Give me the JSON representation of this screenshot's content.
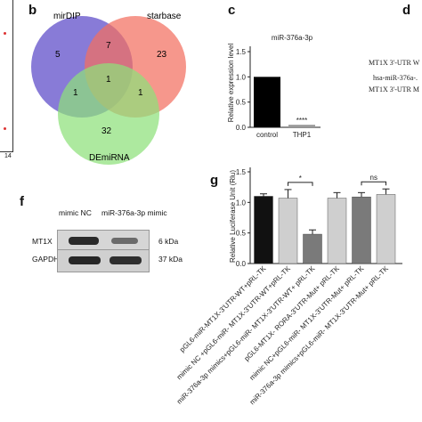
{
  "panels": {
    "b": "b",
    "c": "c",
    "d": "d",
    "f": "f",
    "g": "g"
  },
  "panel_a": {
    "tick": "14"
  },
  "venn": {
    "sets": [
      "mirDIP",
      "starbase",
      "DEmiRNA"
    ],
    "colors": [
      "#6a5acd",
      "#f26f5f",
      "#8ee07a"
    ],
    "counts": {
      "mirDIP_only": "5",
      "starbase_only": "23",
      "DEmiRNA_only": "32",
      "mirDIP_starbase": "7",
      "mirDIP_DEmiRNA": "1",
      "starbase_DEmiRNA": "1",
      "all_three": "1"
    }
  },
  "panel_d": {
    "lines": [
      "MT1X 3'-UTR W",
      "hsa-miR-376a-.",
      "MT1X 3'-UTR M"
    ]
  },
  "blot": {
    "col_labels": [
      "mimic NC",
      "miR-376a-3p mimic"
    ],
    "rows": [
      {
        "name": "MT1X",
        "size": "6 kDa"
      },
      {
        "name": "GAPDH",
        "size": "37 kDa"
      }
    ]
  },
  "chart_data": [
    {
      "type": "bar",
      "title": "miR-376a-3p",
      "ylabel": "Relative expression level",
      "categories": [
        "control",
        "THP1"
      ],
      "values": [
        1.0,
        0.05
      ],
      "ylim": [
        0,
        1.5
      ],
      "yticks": [
        "0.0",
        "0.5",
        "1.0",
        "1.5"
      ],
      "significance": "****",
      "bar_color": "#000000"
    },
    {
      "type": "bar",
      "ylabel": "Relative Luciferase Unit (Rlu)",
      "categories": [
        "pGL6-miR-MT1X-3'UTR-WT+pRL-TK",
        "mimic NC +pGL6-miR- MT1X-3'UTR-WT+pRL-TK",
        "miR-376a-3p mimics+pGL6-miR- MT1X-3'UTR-WT+ pRL-TK",
        "pGL6-MT1X- RORA-3'UTR-Mut+ pRL-TK",
        "mimic NC+pGL6-miR- MT1X-3'UTR-Mut+ pRL-TK",
        "miR-376a-3p mimics+pGL6-miR- MT1X-3'UTR-Mut+ pRL-TK"
      ],
      "values": [
        1.1,
        1.07,
        0.48,
        1.07,
        1.09,
        1.13
      ],
      "errors": [
        0.04,
        0.14,
        0.07,
        0.09,
        0.07,
        0.09
      ],
      "colors": [
        "#111111",
        "#cfcfcf",
        "#7a7a7a",
        "#cfcfcf",
        "#7a7a7a",
        "#cfcfcf"
      ],
      "ylim": [
        0,
        1.5
      ],
      "yticks": [
        "0.0",
        "0.5",
        "1.0",
        "1.5"
      ],
      "comparisons": [
        {
          "from": 1,
          "to": 2,
          "label": "*"
        },
        {
          "from": 4,
          "to": 5,
          "label": "ns"
        }
      ]
    }
  ]
}
